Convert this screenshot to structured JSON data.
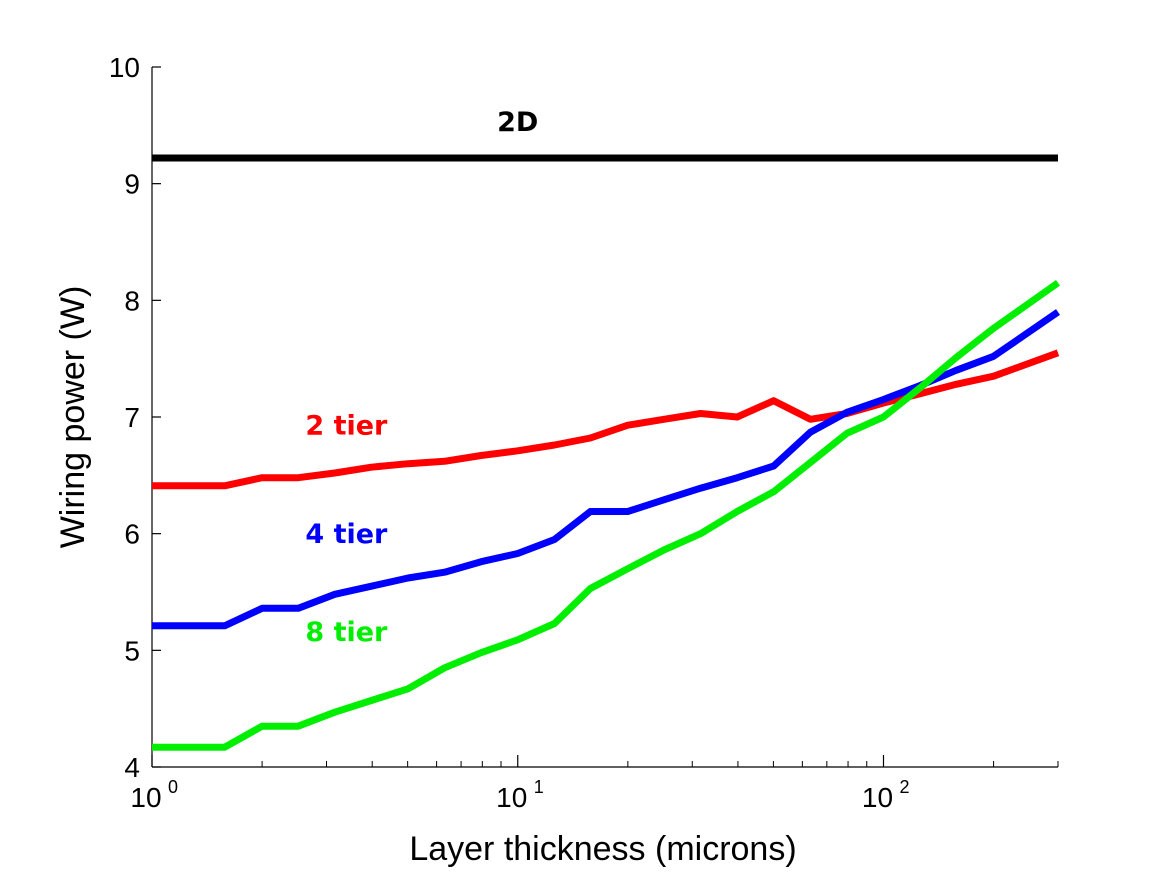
{
  "chart_data": {
    "type": "line",
    "xlabel": "Layer thickness (microns)",
    "ylabel": "Wiring power (W)",
    "xscale": "log",
    "xlim": [
      1,
      300
    ],
    "ylim": [
      4,
      10
    ],
    "yticks": [
      4,
      5,
      6,
      7,
      8,
      9,
      10
    ],
    "xticks": [
      {
        "value": 1,
        "base": "10",
        "exp": "0"
      },
      {
        "value": 10,
        "base": "10",
        "exp": "1"
      },
      {
        "value": 100,
        "base": "10",
        "exp": "2"
      }
    ],
    "grid": false,
    "x": [
      1,
      1.58,
      2,
      2.51,
      3.16,
      3.98,
      5.01,
      6.31,
      7.94,
      10,
      12.6,
      15.8,
      20,
      25.1,
      31.6,
      39.8,
      50.1,
      63.1,
      79.4,
      100,
      126,
      158,
      200,
      300
    ],
    "series": [
      {
        "name": "2D",
        "color": "#000000",
        "values": [
          9.22,
          9.22,
          9.22,
          9.22,
          9.22,
          9.22,
          9.22,
          9.22,
          9.22,
          9.22,
          9.22,
          9.22,
          9.22,
          9.22,
          9.22,
          9.22,
          9.22,
          9.22,
          9.22,
          9.22,
          9.22,
          9.22,
          9.22,
          9.22
        ]
      },
      {
        "name": "2 tier",
        "color": "#ff0000",
        "values": [
          6.41,
          6.41,
          6.48,
          6.48,
          6.52,
          6.57,
          6.6,
          6.62,
          6.67,
          6.71,
          6.76,
          6.82,
          6.93,
          6.98,
          7.03,
          7.0,
          7.14,
          6.98,
          7.03,
          7.12,
          7.2,
          7.28,
          7.35,
          7.55
        ]
      },
      {
        "name": "4 tier",
        "color": "#0000ff",
        "values": [
          5.21,
          5.21,
          5.36,
          5.36,
          5.48,
          5.55,
          5.62,
          5.67,
          5.76,
          5.83,
          5.95,
          6.19,
          6.19,
          6.29,
          6.39,
          6.48,
          6.58,
          6.87,
          7.04,
          7.15,
          7.27,
          7.4,
          7.52,
          7.9
        ]
      },
      {
        "name": "8 tier",
        "color": "#00ee00",
        "values": [
          4.17,
          4.17,
          4.35,
          4.35,
          4.47,
          4.57,
          4.67,
          4.85,
          4.98,
          5.09,
          5.23,
          5.53,
          5.7,
          5.86,
          6.0,
          6.19,
          6.36,
          6.61,
          6.86,
          7.0,
          7.25,
          7.51,
          7.76,
          8.15
        ]
      }
    ],
    "annotations": [
      {
        "text": "2D",
        "color": "#000000",
        "x": 10,
        "y": 9.45
      },
      {
        "text": "2 tier",
        "color": "#ff0000",
        "x": 3.4,
        "y": 6.85
      },
      {
        "text": "4 tier",
        "color": "#0000ff",
        "x": 3.4,
        "y": 5.92
      },
      {
        "text": "8 tier",
        "color": "#00ee00",
        "x": 3.4,
        "y": 5.08
      }
    ]
  }
}
